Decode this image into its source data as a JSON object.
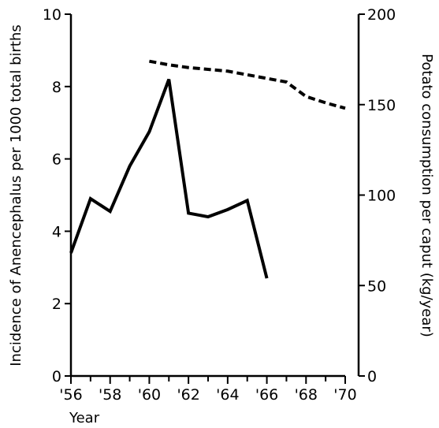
{
  "chart_data": {
    "type": "line",
    "xlabel": "Year",
    "ylabel_left": "Incidence of Anencephalus per 1000 total births",
    "ylabel_right": "Potato consumption per caput (kg/year)",
    "x_ticks": [
      "'56",
      "'58",
      "'60",
      "'62",
      "'64",
      "'66",
      "'68",
      "'70"
    ],
    "y_left_ticks": [
      "0",
      "2",
      "4",
      "6",
      "8",
      "10"
    ],
    "y_right_ticks": [
      "0",
      "50",
      "100",
      "150",
      "200"
    ],
    "xlim": [
      1956,
      1970
    ],
    "ylim_left": [
      0,
      10
    ],
    "ylim_right": [
      0,
      200
    ],
    "grid": false,
    "series": [
      {
        "axis": "left",
        "style": "solid",
        "x": [
          1956,
          1957,
          1958,
          1959,
          1960,
          1961,
          1962,
          1963,
          1964,
          1965,
          1966
        ],
        "values": [
          3.4,
          4.9,
          4.55,
          5.8,
          6.75,
          8.2,
          4.5,
          4.4,
          4.6,
          4.85,
          2.7
        ]
      },
      {
        "axis": "right",
        "style": "dashed",
        "x": [
          1960,
          1961,
          1962,
          1963,
          1964,
          1965,
          1966,
          1967,
          1968,
          1969,
          1970
        ],
        "values": [
          174,
          172,
          170.5,
          169.5,
          168.5,
          166.5,
          164.5,
          162.5,
          154.5,
          151,
          148
        ]
      }
    ]
  }
}
